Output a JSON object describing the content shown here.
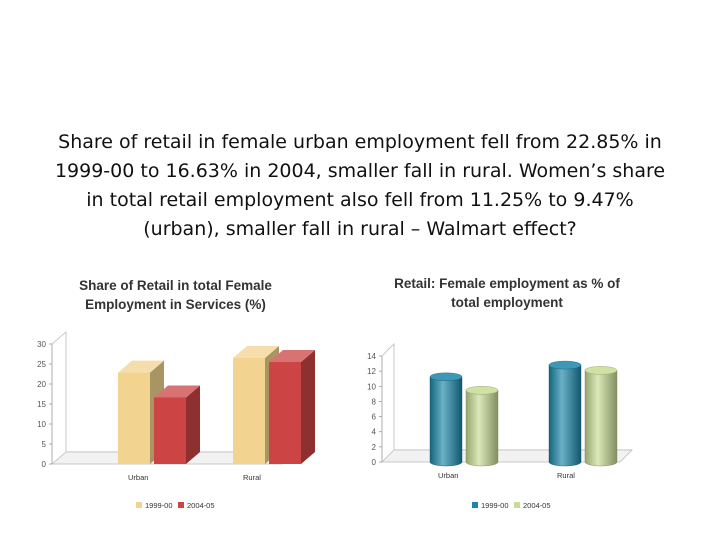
{
  "headline": {
    "lines": [
      "Share of retail in  female urban employment fell from  22.85% in",
      "1999-00  to 16.63% in 2004, smaller fall in rural. Women’s share",
      "in total retail employment also fell from 11.25% to 9.47%",
      "(urban), smaller fall in rural – Walmart effect?"
    ]
  },
  "chart_data": [
    {
      "type": "bar",
      "style": "3d-box",
      "title_lines": [
        "Share of Retail in total Female",
        "Employment in Services (%)"
      ],
      "categories": [
        "Urban",
        "Rural"
      ],
      "series": [
        {
          "name": "1999-00",
          "values": [
            22.85,
            26.5
          ],
          "color": "#f2d38f"
        },
        {
          "name": "2004-05",
          "values": [
            16.63,
            25.5
          ],
          "color": "#cc4444"
        }
      ],
      "ylim": [
        0,
        30
      ],
      "yticks": [
        0,
        5,
        10,
        15,
        20,
        25,
        30
      ],
      "grid": false,
      "legend": "bottom"
    },
    {
      "type": "bar",
      "style": "3d-cylinder",
      "title_lines": [
        "Retail: Female employment as % of",
        "total employment"
      ],
      "categories": [
        "Urban",
        "Rural"
      ],
      "series": [
        {
          "name": "1999-00",
          "values": [
            11.25,
            12.8
          ],
          "color": "#1a86a8"
        },
        {
          "name": "2004-05",
          "values": [
            9.47,
            12.1
          ],
          "color": "#c8dc94"
        }
      ],
      "ylim": [
        0,
        14
      ],
      "yticks": [
        0,
        2,
        4,
        6,
        8,
        10,
        12,
        14
      ],
      "grid": false,
      "legend": "bottom"
    }
  ]
}
